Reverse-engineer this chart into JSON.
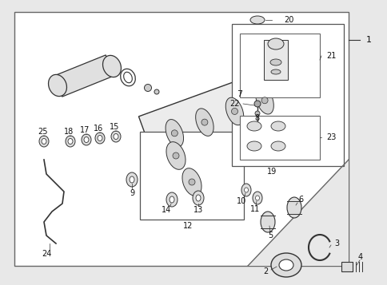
{
  "fig_bg": "#e8e8e8",
  "diagram_bg": "#f5f5f5",
  "line_color": "#333333",
  "label_color": "#111111"
}
